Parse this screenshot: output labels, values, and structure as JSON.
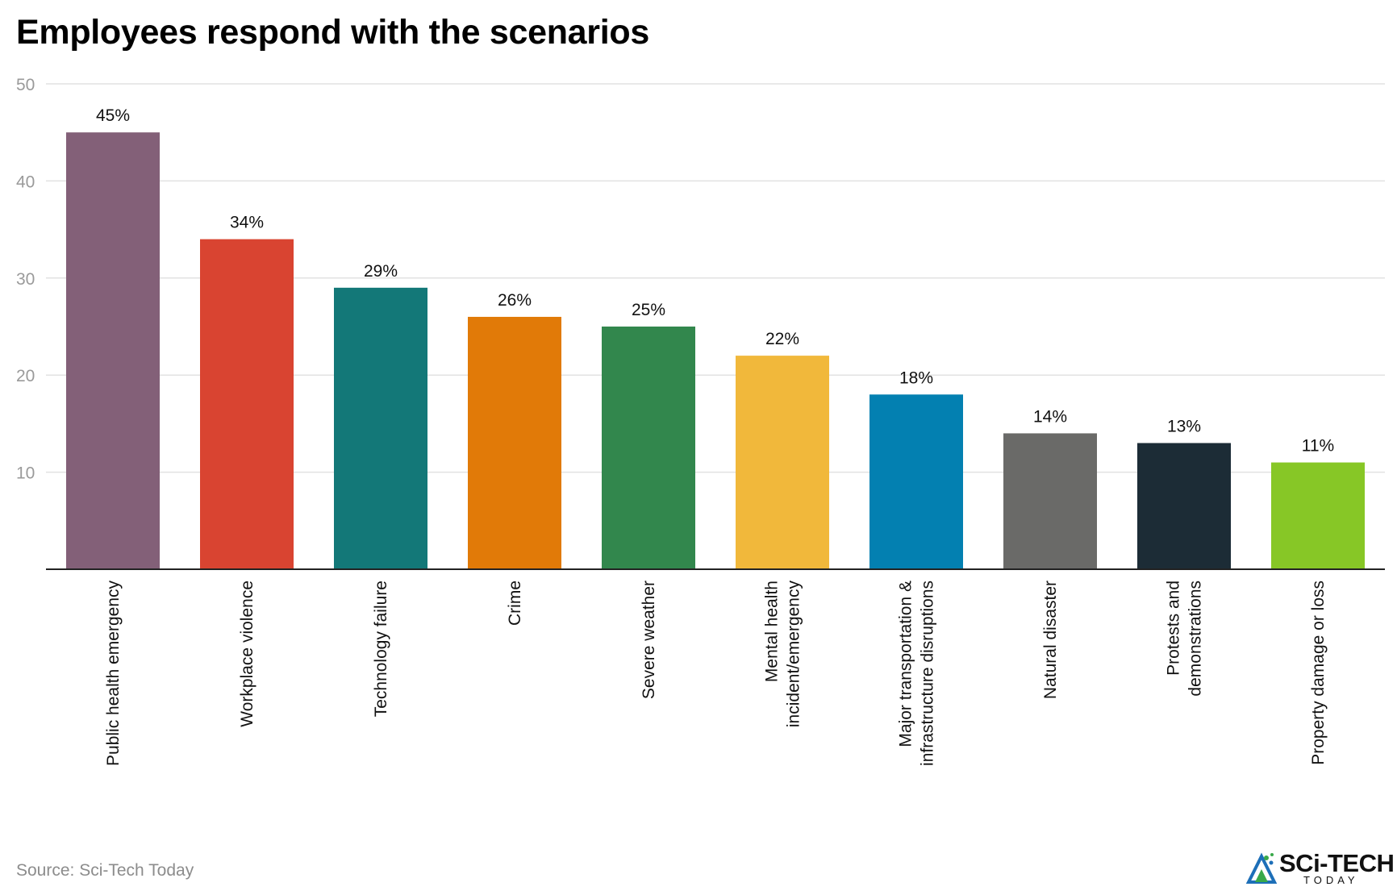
{
  "header": {
    "title": "Employees respond with the scenarios"
  },
  "footer": {
    "source": "Source: Sci-Tech Today",
    "logo_text": "SCi-TECH",
    "logo_sub": "TODAY"
  },
  "chart_data": {
    "type": "bar",
    "title": "Employees respond with the scenarios",
    "xlabel": "",
    "ylabel": "",
    "ylim": [
      0,
      50
    ],
    "yticks": [
      10,
      20,
      30,
      40,
      50
    ],
    "grid": true,
    "legend": "none",
    "categories": [
      [
        "Public health emergency"
      ],
      [
        "Workplace violence"
      ],
      [
        "Technology failure"
      ],
      [
        "Crime"
      ],
      [
        "Severe weather"
      ],
      [
        "Mental health",
        "incident/emergency"
      ],
      [
        "Major transportation &",
        "infrastructure disruptions"
      ],
      [
        "Natural disaster"
      ],
      [
        "Protests and",
        "demonstrations"
      ],
      [
        "Property damage or loss"
      ]
    ],
    "values": [
      45,
      34,
      29,
      26,
      25,
      22,
      18,
      14,
      13,
      11
    ],
    "data_labels": [
      "45%",
      "34%",
      "29%",
      "26%",
      "25%",
      "22%",
      "18%",
      "14%",
      "13%",
      "11%"
    ],
    "colors": [
      "#836078",
      "#d94431",
      "#137878",
      "#e17a08",
      "#32874d",
      "#f1b83b",
      "#0380b1",
      "#6a6a68",
      "#1c2c36",
      "#87c726"
    ]
  }
}
